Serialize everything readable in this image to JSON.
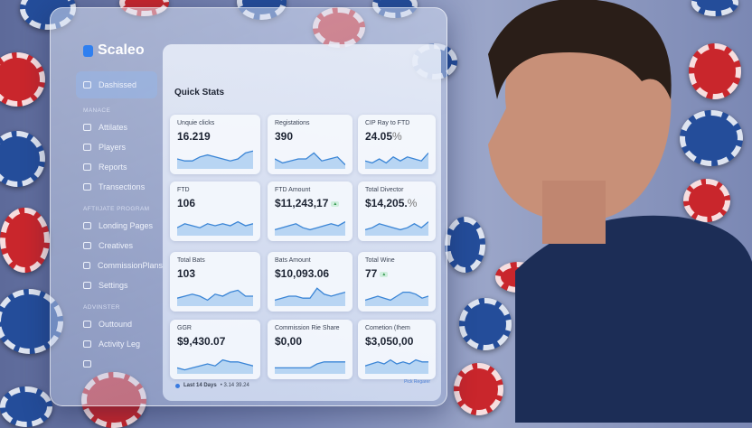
{
  "colors": {
    "accent": "#2f7ff0",
    "chart_line": "#3a85d6",
    "chart_fill": "#a9cdf0"
  },
  "sidebar": {
    "brand": "Scaleo",
    "items": [
      {
        "label": "Dashissed",
        "icon": "grid-icon",
        "active": true
      },
      {
        "section": "MANACE"
      },
      {
        "label": "Attilates",
        "icon": "user-icon"
      },
      {
        "label": "Players",
        "icon": "list-icon"
      },
      {
        "label": "Reports",
        "icon": "chart-icon"
      },
      {
        "label": "Transections",
        "icon": "clock-icon"
      },
      {
        "section": "AFTIIJATE PROGRAM"
      },
      {
        "label": "Londing Pages",
        "icon": "monitor-icon"
      },
      {
        "label": "Creatives",
        "icon": "palette-icon"
      },
      {
        "label": "CommissionPlans",
        "icon": "percent-icon"
      },
      {
        "label": "Settings",
        "icon": "gear-icon"
      },
      {
        "section": "ADVINSTER"
      },
      {
        "label": "Outtound",
        "icon": "user-icon"
      },
      {
        "label": "Activity Leg",
        "icon": "activity-icon"
      },
      {
        "label": "",
        "icon": "bell-icon"
      }
    ]
  },
  "main": {
    "title": "Quick Stats",
    "cards": [
      {
        "label": "Unquie clicks",
        "value": "16.219",
        "trend": [
          5,
          4,
          4,
          6,
          7,
          6,
          5,
          4,
          5,
          8,
          9
        ]
      },
      {
        "label": "Registations",
        "value": "390",
        "trend": [
          5,
          3,
          4,
          5,
          5,
          8,
          4,
          5,
          6,
          2
        ]
      },
      {
        "label": "CIP Ray to FTD",
        "value": "24.05",
        "suffix": "%",
        "trend": [
          4,
          3,
          5,
          3,
          6,
          4,
          6,
          5,
          4,
          8
        ]
      },
      {
        "label": "FTD",
        "value": "106",
        "trend": [
          4,
          6,
          5,
          4,
          6,
          5,
          6,
          5,
          7,
          5,
          6
        ]
      },
      {
        "label": "FTD Amount",
        "value": "$11,243,17",
        "badge": "▲",
        "trend": [
          3,
          4,
          5,
          6,
          4,
          3,
          4,
          5,
          6,
          5,
          7
        ]
      },
      {
        "label": "Total Divector",
        "value": "$14,205.",
        "suffix": "%",
        "trend": [
          3,
          4,
          6,
          5,
          4,
          3,
          4,
          6,
          4,
          7
        ]
      },
      {
        "label": "Total Bats",
        "value": "103",
        "trend": [
          4,
          5,
          6,
          5,
          3,
          6,
          5,
          7,
          8,
          5,
          5
        ]
      },
      {
        "label": "Bats Amount",
        "value": "$10,093.06",
        "trend": [
          3,
          4,
          5,
          5,
          4,
          4,
          9,
          6,
          5,
          6,
          7
        ]
      },
      {
        "label": "Total Wine",
        "value": "77",
        "badge": "▲",
        "trend": [
          3,
          4,
          5,
          4,
          3,
          5,
          7,
          7,
          6,
          4,
          5
        ]
      },
      {
        "label": "GGR",
        "value": "$9,430.07",
        "trend": [
          3,
          2,
          3,
          4,
          5,
          4,
          7,
          6,
          6,
          5,
          4
        ]
      },
      {
        "label": "Commission Rie Share",
        "value": "$0,00",
        "trend": [
          3,
          3,
          3,
          3,
          3,
          3,
          5,
          6,
          6,
          6,
          6
        ]
      },
      {
        "label": "Cometion (Ihem",
        "value": "$3,050,00",
        "trend": [
          4,
          5,
          6,
          5,
          7,
          5,
          6,
          5,
          7,
          6,
          6
        ]
      }
    ],
    "footer": {
      "range": "Last 14 Days",
      "time": "• 3.14 39.24",
      "link": "Pick Regarer"
    }
  }
}
